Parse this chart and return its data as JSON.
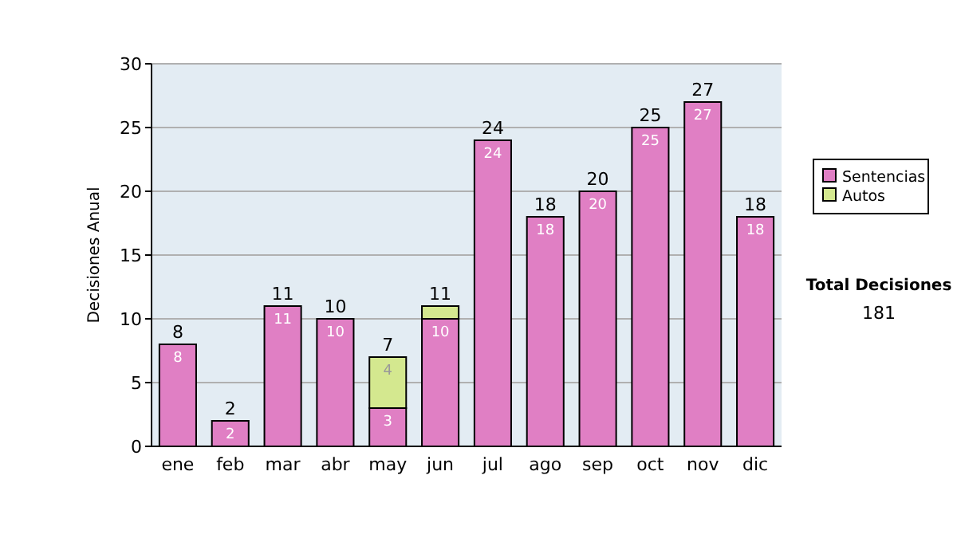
{
  "chart_data": {
    "type": "bar",
    "ylabel": "Decisiones Anual",
    "categories": [
      "ene",
      "feb",
      "mar",
      "abr",
      "may",
      "jun",
      "jul",
      "ago",
      "sep",
      "oct",
      "nov",
      "dic"
    ],
    "stacked": true,
    "series": [
      {
        "name": "Sentencias",
        "color": "#e07fc4",
        "values": [
          8,
          2,
          11,
          10,
          3,
          10,
          24,
          18,
          20,
          25,
          27,
          18
        ],
        "value_labels": [
          "8",
          "2",
          "11",
          "10",
          "3",
          "10",
          "24",
          "18",
          "20",
          "25",
          "27",
          "18"
        ]
      },
      {
        "name": "Autos",
        "color": "#d4e88f",
        "values": [
          null,
          null,
          null,
          null,
          4,
          1,
          null,
          null,
          null,
          null,
          null,
          null
        ],
        "value_labels": [
          null,
          null,
          null,
          null,
          "4",
          null,
          null,
          null,
          null,
          null,
          null,
          null
        ]
      }
    ],
    "totals": [
      "8",
      "2",
      "11",
      "10",
      "7",
      "11",
      "24",
      "18",
      "20",
      "25",
      "27",
      "18"
    ],
    "ylim": [
      0,
      30
    ],
    "yticks": [
      0,
      5,
      10,
      15,
      20,
      25,
      30
    ],
    "grid": "y",
    "legend": "right",
    "annotations": [
      "Total Decisiones",
      "181"
    ]
  }
}
